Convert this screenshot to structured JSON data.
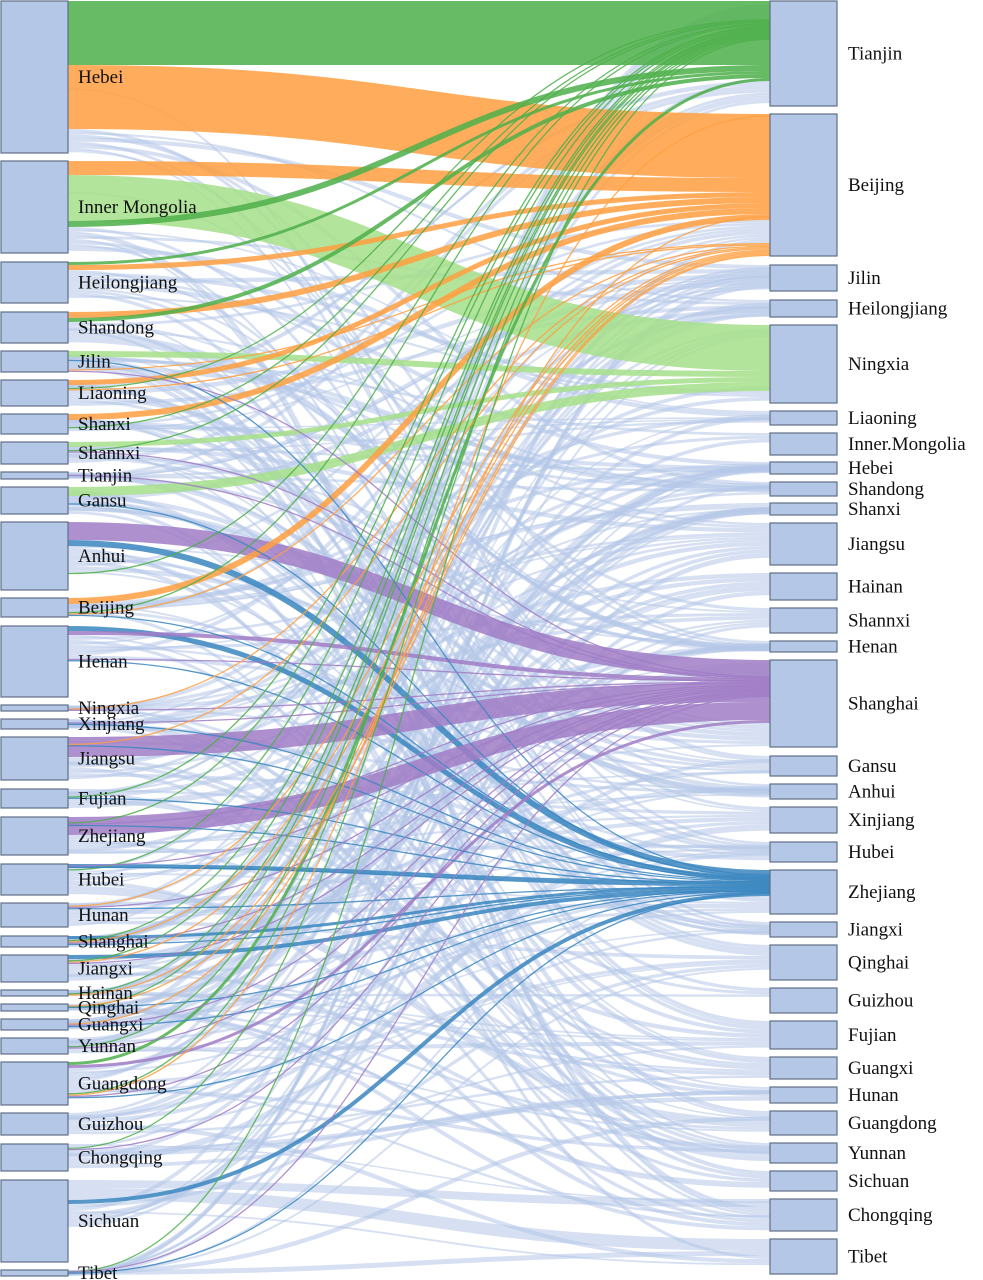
{
  "sources": [
    "Hebei",
    "Inner Mongolia",
    "Heilongjiang",
    "Shandong",
    "Jilin",
    "Liaoning",
    "Shanxi",
    "Shannxi",
    "Tianjin",
    "Gansu",
    "Anhui",
    "Beijing",
    "Henan",
    "Ningxia",
    "Xinjiang",
    "Jiangsu",
    "Fujian",
    "Zhejiang",
    "Hubei",
    "Hunan",
    "Shanghai",
    "Jiangxi",
    "Hainan",
    "Qinghai",
    "Guangxi",
    "Yunnan",
    "Guangdong",
    "Guizhou",
    "Chongqing",
    "Sichuan",
    "Tibet"
  ],
  "targets": [
    "Tianjin",
    "Beijing",
    "Jilin",
    "Heilongjiang",
    "Ningxia",
    "Liaoning",
    "Inner.Mongolia",
    "Hebei",
    "Shandong",
    "Shanxi",
    "Jiangsu",
    "Hainan",
    "Shannxi",
    "Henan",
    "Shanghai",
    "Gansu",
    "Anhui",
    "Xinjiang",
    "Hubei",
    "Zhejiang",
    "Jiangxi",
    "Qinghai",
    "Guizhou",
    "Fujian",
    "Guangxi",
    "Hunan",
    "Guangdong",
    "Yunnan",
    "Sichuan",
    "Chongqing",
    "Tibet"
  ],
  "colors": {
    "node": "#b4c7e7",
    "node_border": "#5f6f86",
    "flow_default": "#b4c7e7",
    "flow_tianjin": "#4daf4a",
    "flow_beijing": "#ff9f40",
    "flow_ningxia": "#a6df8a",
    "flow_shanghai": "#a07cc5",
    "flow_zhejiang": "#3a86c0"
  }
}
